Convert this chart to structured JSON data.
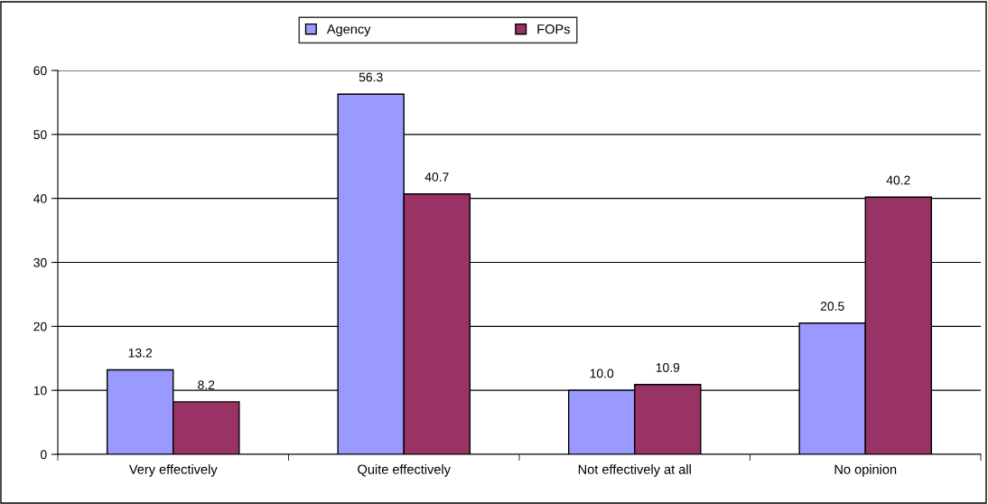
{
  "chart_data": {
    "type": "bar",
    "categories": [
      "Very effectively",
      "Quite effectively",
      "Not effectively at all",
      "No opinion"
    ],
    "series": [
      {
        "name": "Agency",
        "color": "#9999ff",
        "values": [
          13.2,
          56.3,
          10.0,
          20.5
        ],
        "value_labels": [
          "13.2",
          "56.3",
          "10.0",
          "20.5"
        ]
      },
      {
        "name": "FOPs",
        "color": "#993366",
        "values": [
          8.2,
          40.7,
          10.9,
          40.2
        ],
        "value_labels": [
          "8.2",
          "40.7",
          "10.9",
          "40.2"
        ]
      }
    ],
    "ylim": [
      0,
      60
    ],
    "yticks": [
      0,
      10,
      20,
      30,
      40,
      50,
      60
    ],
    "grid": "y",
    "legend": "top"
  }
}
